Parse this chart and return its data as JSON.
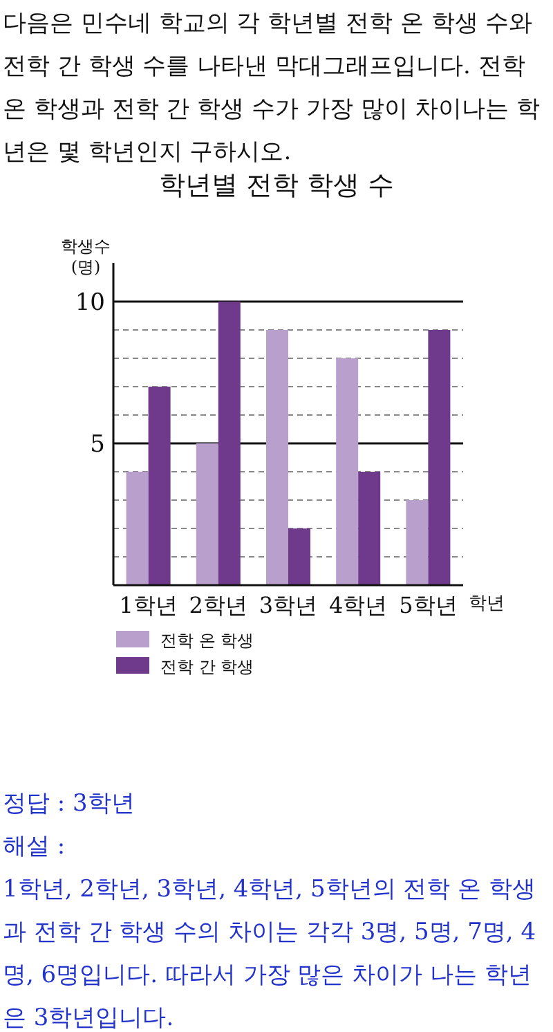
{
  "chart_data": {
    "type": "bar",
    "title": "학년별 전학 학생 수",
    "xlabel": "학년",
    "ylabel": "학생수 (명)",
    "categories": [
      "1학년",
      "2학년",
      "3학년",
      "4학년",
      "5학년"
    ],
    "series": [
      {
        "name": "전학 온 학생",
        "color": "#b9a0cc",
        "values": [
          4,
          5,
          9,
          8,
          3
        ]
      },
      {
        "name": "전학 간 학생",
        "color": "#6f3a8c",
        "values": [
          7,
          10,
          2,
          4,
          9
        ]
      }
    ],
    "ylim": [
      0,
      10
    ],
    "yticks": [
      {
        "value": 0,
        "label": null
      },
      {
        "value": 1,
        "label": null
      },
      {
        "value": 2,
        "label": null
      },
      {
        "value": 3,
        "label": null
      },
      {
        "value": 4,
        "label": null
      },
      5,
      {
        "value": 6,
        "label": null
      },
      {
        "value": 7,
        "label": null
      },
      {
        "value": 8,
        "label": null
      },
      {
        "value": 9,
        "label": null
      },
      10
    ],
    "grid": "y",
    "legend": "bottom",
    "ref_lines": [
      {
        "axis": "y",
        "value": 5,
        "label": null,
        "color": "#111111",
        "line_style": "solid"
      },
      {
        "axis": "y",
        "value": 10,
        "label": null,
        "color": "#111111",
        "line_style": "solid"
      }
    ],
    "annotations": [
      "다음은 민수네 학교의 각 학년별 전학 온 학생 수와 전학 간 학생 수를 나타낸 막대그래프입니다. 전학 온 학생과 전학 간 학생 수가 가장 많이 차이나는 학년은 몇 학년인지 구하시오.",
      "정답 : 3학년",
      "해설 :",
      "1학년, 2학년, 3학년, 4학년, 5학년의 전학 온 학생과 전학 간 학생 수의 차이는 각각 3명, 5명, 7명, 4명, 6명입니다. 따라서 가장 많은 차이가 나는 학년은 3학년입니다."
    ]
  }
}
